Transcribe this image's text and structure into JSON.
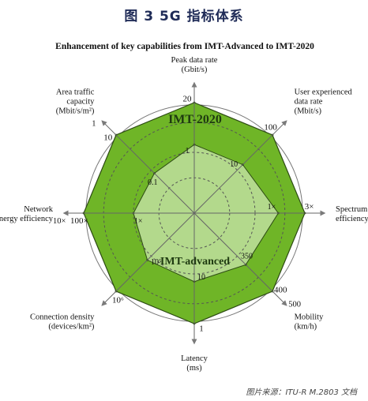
{
  "figure": {
    "title": "图 3   5G 指标体系",
    "source_note": "图片来源：ITU-R M.2803 文档"
  },
  "chart_data": {
    "type": "radar",
    "title": "Enhancement of key capabilities from IMT-Advanced to IMT-2020",
    "axes": [
      {
        "key": "peak",
        "lines": [
          "Peak data rate",
          "(Gbit/s)"
        ],
        "outer": "20",
        "inner": "1",
        "extra": ""
      },
      {
        "key": "user",
        "lines": [
          "User experienced",
          "data rate",
          "(Mbit/s)"
        ],
        "outer": "100",
        "inner": "10",
        "extra": ""
      },
      {
        "key": "spectrum",
        "lines": [
          "Spectrum",
          "efficiency"
        ],
        "outer": "3×",
        "inner": "1×",
        "extra": ""
      },
      {
        "key": "mobility",
        "lines": [
          "Mobility",
          "(km/h)"
        ],
        "outer": "400",
        "inner": "350",
        "extra": "500"
      },
      {
        "key": "latency",
        "lines": [
          "Latency",
          "(ms)"
        ],
        "outer": "1",
        "inner": "10",
        "extra": ""
      },
      {
        "key": "density",
        "lines": [
          "Connection density",
          "(devices/km²)"
        ],
        "outer": "10⁶",
        "inner": "10⁵",
        "extra": ""
      },
      {
        "key": "energy",
        "lines": [
          "Network",
          "energy efficiency"
        ],
        "outer": "100×",
        "inner": "1×",
        "extra": "10×"
      },
      {
        "key": "area",
        "lines": [
          "Area traffic",
          "capacity",
          "(Mbit/s/m²)"
        ],
        "outer": "10",
        "inner": "0.1",
        "extra": "1"
      }
    ],
    "series": [
      {
        "name": "IMT-2020",
        "levels": [
          1.0,
          1.0,
          1.0,
          1.0,
          1.0,
          1.0,
          1.0,
          1.0
        ],
        "color": "#6fb527"
      },
      {
        "name": "IMT-advanced",
        "levels": [
          0.62,
          0.62,
          0.76,
          0.66,
          0.62,
          0.6,
          0.55,
          0.51
        ],
        "color": "#b3d98c"
      }
    ],
    "grid": "dashed rings",
    "colors": {
      "outer_fill": "#6fb527",
      "inner_fill": "#b3d98c",
      "spoke": "#666666",
      "ring": "#555555",
      "axis_arrow": "#7a7a7a"
    }
  }
}
